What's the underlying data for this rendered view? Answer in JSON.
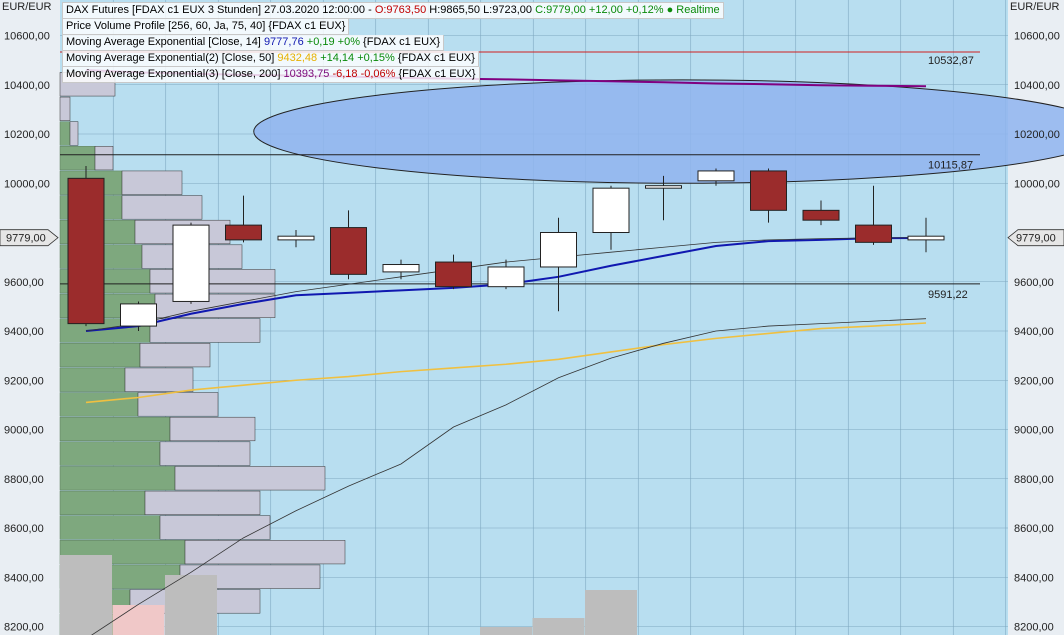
{
  "chart_data": {
    "type": "candlestick",
    "axes": {
      "unit_label_left": "EUR/EUR",
      "unit_label_right": "EUR/EUR",
      "y_ticks": [
        "10600,00",
        "10400,00",
        "10200,00",
        "10000,00",
        "9600,00",
        "9400,00",
        "9200,00",
        "9000,00",
        "8800,00",
        "8600,00",
        "8400,00",
        "8200,00"
      ],
      "y_tick_values": [
        10600,
        10400,
        10200,
        10000,
        9600,
        9400,
        9200,
        9000,
        8800,
        8600,
        8400,
        8200
      ],
      "ylim": [
        8150,
        10700
      ]
    },
    "last_price": {
      "label": "9779,00",
      "value": 9779
    },
    "hlines": [
      {
        "label": "10532,87",
        "value": 10532.87,
        "color": "#d02020"
      },
      {
        "label": "10115,87",
        "value": 10115.87,
        "color": "#202020"
      },
      {
        "label": "9591,22",
        "value": 9591.22,
        "color": "#202020"
      }
    ],
    "candles": [
      {
        "open": 10020,
        "close": 9430,
        "high": 10070,
        "low": 9420
      },
      {
        "open": 9420,
        "close": 9510,
        "high": 9520,
        "low": 9400
      },
      {
        "open": 9520,
        "close": 9830,
        "high": 9840,
        "low": 9510
      },
      {
        "open": 9830,
        "close": 9770,
        "high": 9950,
        "low": 9760
      },
      {
        "open": 9770,
        "close": 9785,
        "high": 9810,
        "low": 9740
      },
      {
        "open": 9820,
        "close": 9630,
        "high": 9890,
        "low": 9610
      },
      {
        "open": 9640,
        "close": 9670,
        "high": 9690,
        "low": 9610
      },
      {
        "open": 9680,
        "close": 9580,
        "high": 9710,
        "low": 9570
      },
      {
        "open": 9580,
        "close": 9660,
        "high": 9690,
        "low": 9570
      },
      {
        "open": 9660,
        "close": 9800,
        "high": 9860,
        "low": 9480
      },
      {
        "open": 9800,
        "close": 9980,
        "high": 9990,
        "low": 9730
      },
      {
        "open": 9980,
        "close": 9990,
        "high": 10030,
        "low": 9850
      },
      {
        "open": 10010,
        "close": 10050,
        "high": 10060,
        "low": 9990
      },
      {
        "open": 10050,
        "close": 9890,
        "high": 10060,
        "low": 9840
      },
      {
        "open": 9890,
        "close": 9850,
        "high": 9930,
        "low": 9830
      },
      {
        "open": 9830,
        "close": 9760,
        "high": 9990,
        "low": 9750
      },
      {
        "open": 9770,
        "close": 9785,
        "high": 9860,
        "low": 9720
      }
    ],
    "series": [
      {
        "name": "Moving Average Exponential [Close, 14]",
        "color": "#1018b0",
        "values": [
          9400,
          9420,
          9470,
          9510,
          9545,
          9555,
          9565,
          9575,
          9590,
          9620,
          9665,
          9705,
          9745,
          9765,
          9770,
          9777,
          9777.76
        ]
      },
      {
        "name": "Moving Average Exponential(2) [Close, 50]",
        "color": "#f0c040",
        "values": [
          9110,
          9130,
          9160,
          9180,
          9200,
          9215,
          9235,
          9250,
          9265,
          9285,
          9315,
          9345,
          9370,
          9390,
          9410,
          9420,
          9432.48
        ]
      },
      {
        "name": "Moving Average Exponential(3) [Close, 200]",
        "color": "#800080",
        "values": [
          10460,
          10450,
          10445,
          10440,
          10437,
          10433,
          10428,
          10425,
          10422,
          10418,
          10414,
          10410,
          10405,
          10402,
          10398,
          10396,
          10393.75
        ]
      },
      {
        "name": "",
        "color": "#333333",
        "values": [
          8150,
          8290,
          8420,
          8560,
          8670,
          8770,
          8860,
          9010,
          9100,
          9210,
          9290,
          9350,
          9400,
          9420,
          9430,
          9440,
          9450
        ]
      },
      {
        "name": "",
        "color": "#333333",
        "values": [
          9400,
          9430,
          9480,
          9520,
          9560,
          9590,
          9620,
          9650,
          9680,
          9700,
          9720,
          9740,
          9760,
          9770,
          9775,
          9778,
          9779
        ]
      }
    ],
    "volume_profile": [
      {
        "price": 10400,
        "up": 0,
        "down": 55
      },
      {
        "price": 10300,
        "up": 0,
        "down": 10
      },
      {
        "price": 10200,
        "up": 10,
        "down": 8
      },
      {
        "price": 10100,
        "up": 35,
        "down": 18
      },
      {
        "price": 10000,
        "up": 62,
        "down": 60
      },
      {
        "price": 9900,
        "up": 62,
        "down": 80
      },
      {
        "price": 9800,
        "up": 75,
        "down": 95
      },
      {
        "price": 9700,
        "up": 82,
        "down": 100
      },
      {
        "price": 9600,
        "up": 90,
        "down": 125
      },
      {
        "price": 9500,
        "up": 95,
        "down": 120
      },
      {
        "price": 9400,
        "up": 90,
        "down": 110
      },
      {
        "price": 9300,
        "up": 80,
        "down": 70
      },
      {
        "price": 9200,
        "up": 65,
        "down": 68
      },
      {
        "price": 9100,
        "up": 78,
        "down": 80
      },
      {
        "price": 9000,
        "up": 110,
        "down": 85
      },
      {
        "price": 8900,
        "up": 100,
        "down": 90
      },
      {
        "price": 8800,
        "up": 115,
        "down": 150
      },
      {
        "price": 8700,
        "up": 85,
        "down": 115
      },
      {
        "price": 8600,
        "up": 100,
        "down": 110
      },
      {
        "price": 8500,
        "up": 125,
        "down": 160
      },
      {
        "price": 8400,
        "up": 120,
        "down": 140
      },
      {
        "price": 8300,
        "up": 70,
        "down": 130
      },
      {
        "price": 8200,
        "up": 80,
        "down": 0
      }
    ],
    "volume_bars": [
      {
        "index": 0,
        "value": 80,
        "color": "#bdbdbd"
      },
      {
        "index": 1,
        "value": 30,
        "color": "#f0c8c8"
      },
      {
        "index": 2,
        "value": 60,
        "color": "#bdbdbd"
      },
      {
        "index": 8,
        "value": 8,
        "color": "#bdbdbd"
      },
      {
        "index": 9,
        "value": 17,
        "color": "#bdbdbd"
      },
      {
        "index": 10,
        "value": 45,
        "color": "#bdbdbd"
      }
    ],
    "ellipse": {
      "x_start_index": 3.5,
      "x_end_index": 18,
      "y_top": 10420,
      "y_bottom": 10000
    }
  },
  "legend": {
    "row1": {
      "name": "DAX Futures [FDAX c1 EUX 3 Stunden]",
      "date": "27.03.2020 12:00:00 -",
      "o": "O:9763,50",
      "hl": "H:9865,50 L:9723,00",
      "c": "C:9779,00 +12,00 +0,12% ● Realtime"
    },
    "row2": {
      "name": "Price Volume Profile [256, 60, Ja, 75, 40]",
      "src": "{FDAX c1 EUX}"
    },
    "row3": {
      "name": "Moving Average Exponential [Close, 14]",
      "val": "9777,76",
      "chg": "+0,19 +0%",
      "src": "{FDAX c1 EUX}"
    },
    "row4": {
      "name": "Moving Average Exponential(2) [Close, 50]",
      "val": "9432,48",
      "chg": "+14,14 +0,15%",
      "src": "{FDAX c1 EUX}"
    },
    "row5": {
      "name": "Moving Average Exponential(3) [Close, 200]",
      "val": "10393,75",
      "chg": "-6,18 -0,06%",
      "src": "{FDAX c1 EUX}"
    }
  },
  "colors": {
    "background": "#b8def0",
    "grid": "#7fa8c0",
    "bull_candle": "#ffffff",
    "bear_candle": "#9b2c2c",
    "ellipse_fill": "#8fb4ee",
    "vp_up": "#7ea87e",
    "vp_down": "#c8c8d8"
  }
}
